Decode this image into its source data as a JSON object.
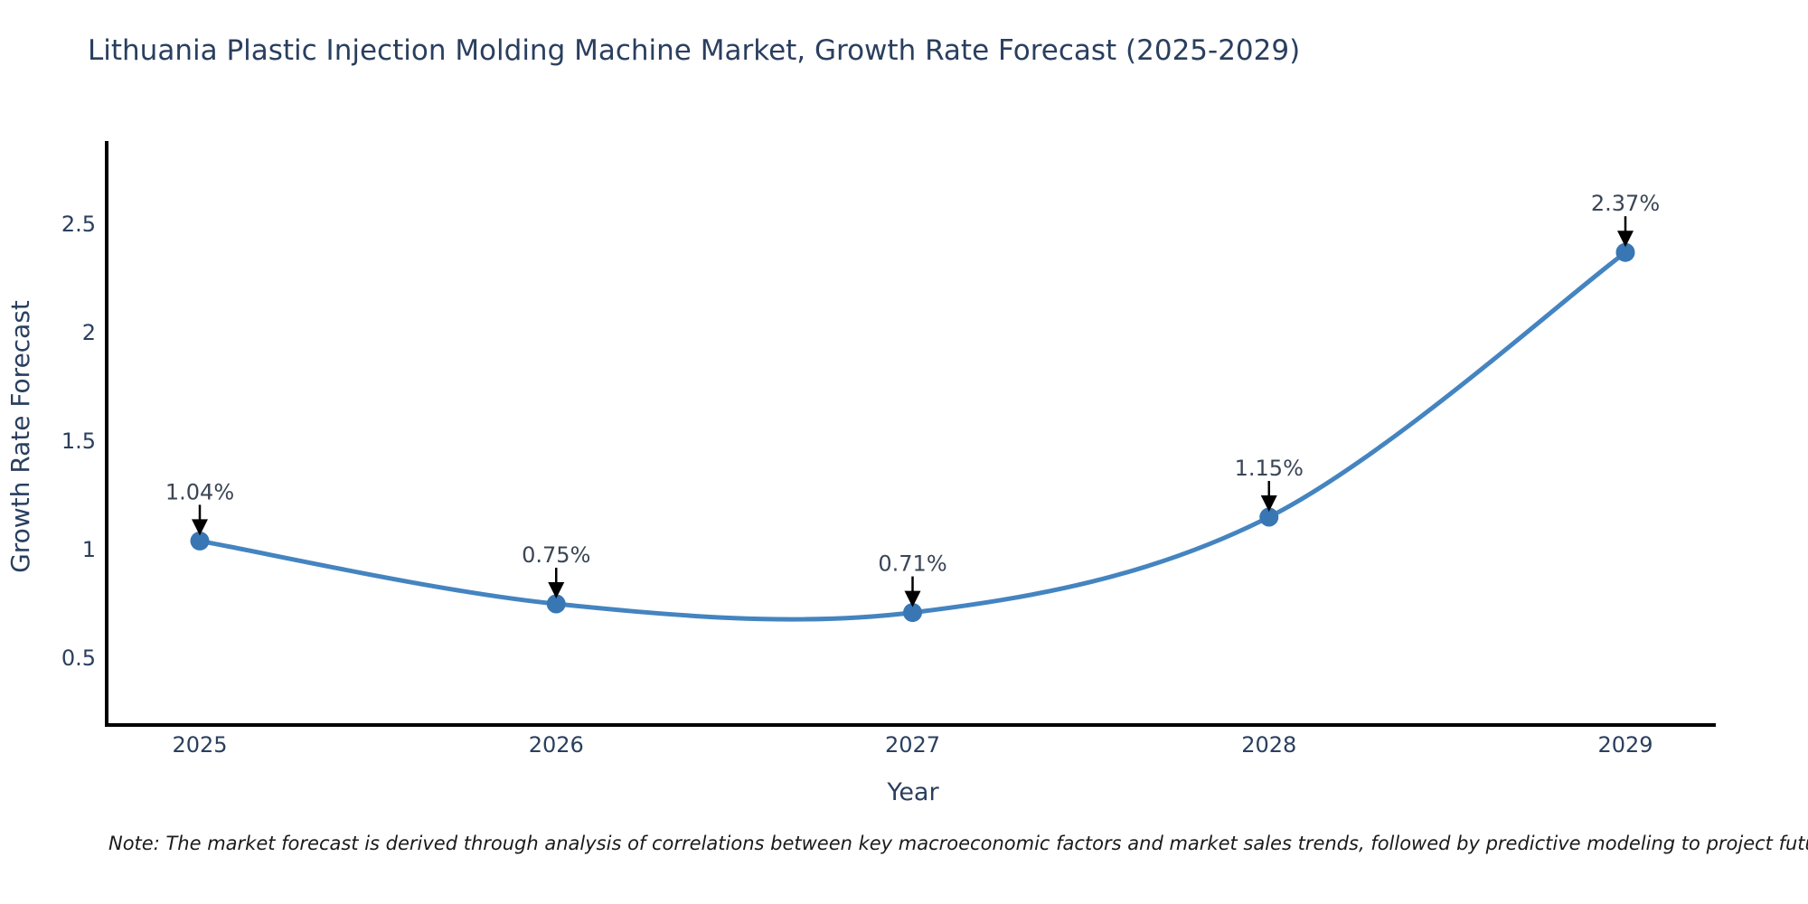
{
  "title": "Lithuania Plastic Injection Molding Machine Market, Growth Rate Forecast (2025-2029)",
  "note": "Note: The market forecast is derived through analysis of correlations between key macroeconomic factors and market sales trends, followed by predictive modeling to project future sales.",
  "chart_data": {
    "type": "line",
    "title": "Lithuania Plastic Injection Molding Machine Market, Growth Rate Forecast (2025-2029)",
    "xlabel": "Year",
    "ylabel": "Growth Rate Forecast",
    "categories": [
      "2025",
      "2026",
      "2027",
      "2028",
      "2029"
    ],
    "series": [
      {
        "name": "Growth Rate Forecast",
        "values": [
          1.04,
          0.75,
          0.71,
          1.15,
          2.37
        ]
      }
    ],
    "annotations": [
      "1.04%",
      "0.75%",
      "0.71%",
      "1.15%",
      "2.37%"
    ],
    "ytick_values": [
      0.5,
      1,
      1.5,
      2,
      2.5
    ],
    "ytick_labels": [
      "0.5",
      "1",
      "1.5",
      "2",
      "2.5"
    ],
    "ylim": [
      0.19,
      2.9
    ],
    "grid": false,
    "legend_position": "none",
    "line_color": "#4484c0",
    "marker_color": "#3976b4",
    "axis_color": "#000000",
    "text_color": "#2a3f5f",
    "annotation_text_color": "#3a4554",
    "arrow_color": "#000000"
  }
}
